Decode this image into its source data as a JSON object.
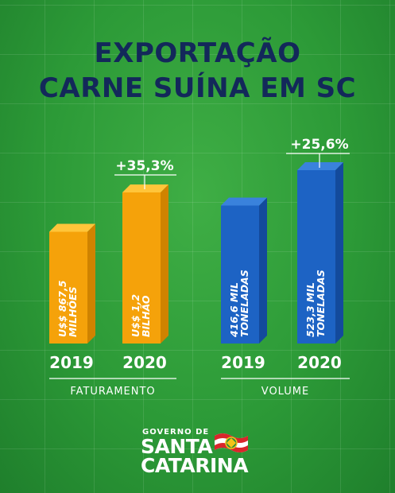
{
  "title": {
    "line1": "EXPORTAÇÃO",
    "line2": "CARNE SUÍNA EM SC"
  },
  "chart_data": [
    {
      "type": "bar",
      "group_label": "FATURAMENTO",
      "categories": [
        "2019",
        "2020"
      ],
      "values": [
        867.5,
        1173
      ],
      "value_labels": [
        [
          "U$$ 867,5",
          "MILHÕES"
        ],
        [
          "U$$ 1,2",
          "BILHÃO"
        ]
      ],
      "change_label": "+35,3%",
      "color": "#f5a20a",
      "color_dark": "#cf8300",
      "color_light": "#ffc53a"
    },
    {
      "type": "bar",
      "group_label": "VOLUME",
      "categories": [
        "2019",
        "2020"
      ],
      "values": [
        416.6,
        523.3
      ],
      "value_labels": [
        [
          "416,6 MIL",
          "TONELADAS"
        ],
        [
          "523,3 MIL",
          "TONELADAS"
        ]
      ],
      "change_label": "+25,6%",
      "color": "#1d63c4",
      "color_dark": "#134a9c",
      "color_light": "#3a82dc"
    }
  ],
  "logo": {
    "top": "GOVERNO DE",
    "line1": "SANTA",
    "line2": "CATARINA"
  },
  "colors": {
    "title": "#13285a",
    "background": "#2c9a37"
  }
}
